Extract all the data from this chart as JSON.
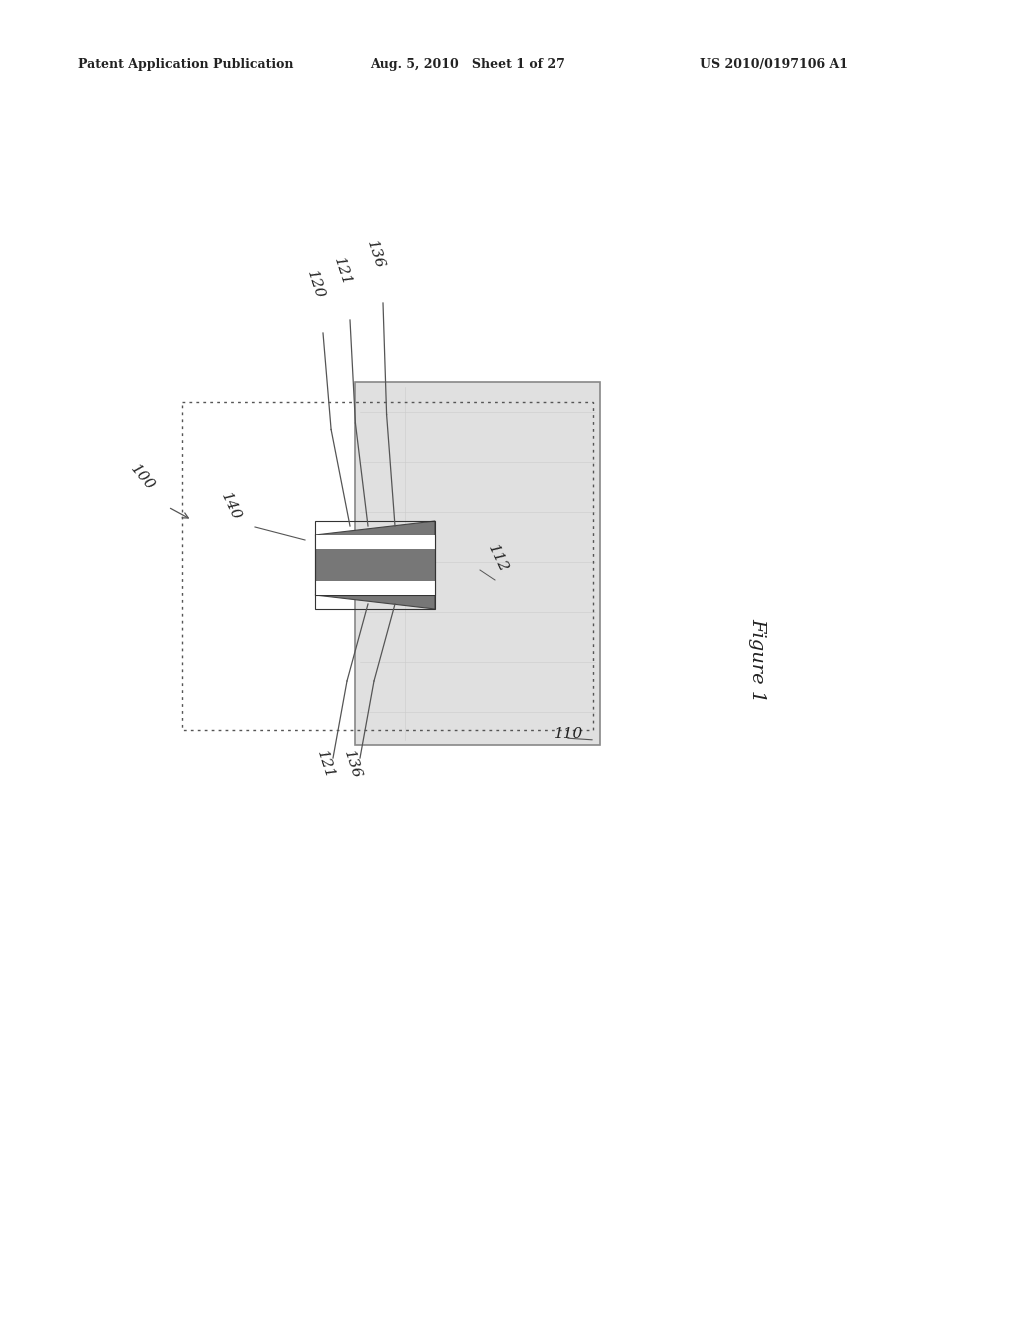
{
  "bg_color": "#ffffff",
  "header_left": "Patent Application Publication",
  "header_mid": "Aug. 5, 2010   Sheet 1 of 27",
  "header_right": "US 2010/0197106 A1",
  "figure_label": "Figure 1",
  "line_color": "#555555",
  "dark_fill": "#777777",
  "light_fill": "#dddddd",
  "inner_fill": "#e0e0e0"
}
